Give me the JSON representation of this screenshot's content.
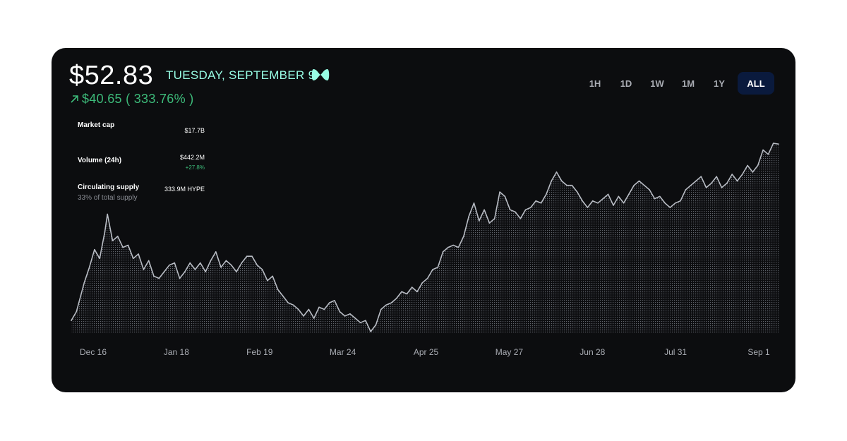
{
  "header": {
    "price": "$52.83",
    "date": "TUESDAY, SEPTEMBER 9",
    "change": "$40.65 ( 333.76% )"
  },
  "ranges": [
    "1H",
    "1D",
    "1W",
    "1M",
    "1Y",
    "ALL"
  ],
  "active_range": "ALL",
  "stats": {
    "market_cap": {
      "label": "Market cap",
      "value": "$17.7B"
    },
    "volume": {
      "label": "Volume (24h)",
      "value": "$442.2M",
      "delta": "+27.8%"
    },
    "supply": {
      "label": "Circulating supply",
      "sub": "33% of total supply",
      "value": "333.9M HYPE"
    }
  },
  "colors": {
    "accent": "#97fce4",
    "positive": "#3dbb7a",
    "line": "#b8bcc4",
    "background": "#0c0d0f"
  },
  "chart_data": {
    "type": "area",
    "x_start": "2024-12-09",
    "x_end": "2025-09-09",
    "x_ticks": [
      "Dec 16",
      "Jan 18",
      "Feb 19",
      "Mar 24",
      "Apr 25",
      "May 27",
      "Jun 28",
      "Jul 31",
      "Sep 1"
    ],
    "ylim": [
      10,
      57
    ],
    "series": [
      {
        "points": [
          [
            "2024-12-09",
            13.0
          ],
          [
            "2024-12-11",
            15.0
          ],
          [
            "2024-12-14",
            21.5
          ],
          [
            "2024-12-16",
            25.0
          ],
          [
            "2024-12-18",
            29.0
          ],
          [
            "2024-12-20",
            27.0
          ],
          [
            "2024-12-22",
            33.0
          ],
          [
            "2024-12-23",
            37.0
          ],
          [
            "2024-12-25",
            31.0
          ],
          [
            "2024-12-27",
            32.0
          ],
          [
            "2024-12-29",
            29.5
          ],
          [
            "2024-12-31",
            30.0
          ],
          [
            "2025-01-02",
            27.0
          ],
          [
            "2025-01-04",
            28.0
          ],
          [
            "2025-01-06",
            24.5
          ],
          [
            "2025-01-08",
            26.5
          ],
          [
            "2025-01-10",
            23.0
          ],
          [
            "2025-01-12",
            22.5
          ],
          [
            "2025-01-14",
            24.0
          ],
          [
            "2025-01-16",
            25.5
          ],
          [
            "2025-01-18",
            26.0
          ],
          [
            "2025-01-20",
            22.5
          ],
          [
            "2025-01-22",
            24.0
          ],
          [
            "2025-01-24",
            26.0
          ],
          [
            "2025-01-26",
            24.5
          ],
          [
            "2025-01-28",
            26.0
          ],
          [
            "2025-01-30",
            24.0
          ],
          [
            "2025-02-01",
            26.5
          ],
          [
            "2025-02-03",
            28.5
          ],
          [
            "2025-02-05",
            25.0
          ],
          [
            "2025-02-07",
            26.5
          ],
          [
            "2025-02-09",
            25.5
          ],
          [
            "2025-02-11",
            24.0
          ],
          [
            "2025-02-13",
            26.0
          ],
          [
            "2025-02-15",
            27.5
          ],
          [
            "2025-02-17",
            27.5
          ],
          [
            "2025-02-19",
            25.5
          ],
          [
            "2025-02-21",
            24.5
          ],
          [
            "2025-02-23",
            22.0
          ],
          [
            "2025-02-25",
            23.0
          ],
          [
            "2025-02-27",
            20.0
          ],
          [
            "2025-03-01",
            18.5
          ],
          [
            "2025-03-03",
            17.0
          ],
          [
            "2025-03-05",
            16.5
          ],
          [
            "2025-03-07",
            15.5
          ],
          [
            "2025-03-09",
            14.0
          ],
          [
            "2025-03-11",
            15.5
          ],
          [
            "2025-03-13",
            13.5
          ],
          [
            "2025-03-15",
            16.0
          ],
          [
            "2025-03-17",
            15.5
          ],
          [
            "2025-03-19",
            17.0
          ],
          [
            "2025-03-21",
            17.5
          ],
          [
            "2025-03-23",
            15.0
          ],
          [
            "2025-03-25",
            14.0
          ],
          [
            "2025-03-27",
            14.5
          ],
          [
            "2025-03-29",
            13.5
          ],
          [
            "2025-03-31",
            12.5
          ],
          [
            "2025-04-02",
            13.0
          ],
          [
            "2025-04-04",
            10.5
          ],
          [
            "2025-04-06",
            12.0
          ],
          [
            "2025-04-08",
            15.5
          ],
          [
            "2025-04-10",
            16.5
          ],
          [
            "2025-04-12",
            17.0
          ],
          [
            "2025-04-14",
            18.0
          ],
          [
            "2025-04-16",
            19.5
          ],
          [
            "2025-04-18",
            19.0
          ],
          [
            "2025-04-20",
            20.5
          ],
          [
            "2025-04-22",
            19.5
          ],
          [
            "2025-04-24",
            21.5
          ],
          [
            "2025-04-26",
            22.5
          ],
          [
            "2025-04-28",
            24.5
          ],
          [
            "2025-04-30",
            25.0
          ],
          [
            "2025-05-02",
            28.5
          ],
          [
            "2025-05-04",
            29.5
          ],
          [
            "2025-05-06",
            30.0
          ],
          [
            "2025-05-08",
            29.5
          ],
          [
            "2025-05-10",
            32.0
          ],
          [
            "2025-05-12",
            36.5
          ],
          [
            "2025-05-14",
            39.5
          ],
          [
            "2025-05-16",
            35.5
          ],
          [
            "2025-05-18",
            38.0
          ],
          [
            "2025-05-20",
            35.0
          ],
          [
            "2025-05-22",
            36.0
          ],
          [
            "2025-05-24",
            42.0
          ],
          [
            "2025-05-26",
            41.0
          ],
          [
            "2025-05-28",
            38.0
          ],
          [
            "2025-05-30",
            37.5
          ],
          [
            "2025-06-01",
            36.0
          ],
          [
            "2025-06-03",
            38.0
          ],
          [
            "2025-06-05",
            38.5
          ],
          [
            "2025-06-07",
            40.0
          ],
          [
            "2025-06-09",
            39.5
          ],
          [
            "2025-06-11",
            41.5
          ],
          [
            "2025-06-13",
            44.5
          ],
          [
            "2025-06-15",
            46.5
          ],
          [
            "2025-06-17",
            44.5
          ],
          [
            "2025-06-19",
            43.5
          ],
          [
            "2025-06-21",
            43.5
          ],
          [
            "2025-06-23",
            42.0
          ],
          [
            "2025-06-25",
            40.0
          ],
          [
            "2025-06-27",
            38.5
          ],
          [
            "2025-06-29",
            40.0
          ],
          [
            "2025-07-01",
            39.5
          ],
          [
            "2025-07-03",
            40.5
          ],
          [
            "2025-07-05",
            41.5
          ],
          [
            "2025-07-07",
            39.0
          ],
          [
            "2025-07-09",
            41.0
          ],
          [
            "2025-07-11",
            39.5
          ],
          [
            "2025-07-13",
            41.5
          ],
          [
            "2025-07-15",
            43.5
          ],
          [
            "2025-07-17",
            44.5
          ],
          [
            "2025-07-19",
            43.5
          ],
          [
            "2025-07-21",
            42.5
          ],
          [
            "2025-07-23",
            40.5
          ],
          [
            "2025-07-25",
            41.0
          ],
          [
            "2025-07-27",
            39.5
          ],
          [
            "2025-07-29",
            38.5
          ],
          [
            "2025-07-31",
            39.5
          ],
          [
            "2025-08-02",
            40.0
          ],
          [
            "2025-08-04",
            42.5
          ],
          [
            "2025-08-06",
            43.5
          ],
          [
            "2025-08-08",
            44.5
          ],
          [
            "2025-08-10",
            45.5
          ],
          [
            "2025-08-12",
            43.0
          ],
          [
            "2025-08-14",
            44.0
          ],
          [
            "2025-08-16",
            45.5
          ],
          [
            "2025-08-18",
            43.0
          ],
          [
            "2025-08-20",
            44.0
          ],
          [
            "2025-08-22",
            46.0
          ],
          [
            "2025-08-24",
            44.5
          ],
          [
            "2025-08-26",
            46.0
          ],
          [
            "2025-08-28",
            48.0
          ],
          [
            "2025-08-30",
            46.5
          ],
          [
            "2025-09-01",
            48.0
          ],
          [
            "2025-09-03",
            51.5
          ],
          [
            "2025-09-05",
            50.5
          ],
          [
            "2025-09-07",
            53.0
          ],
          [
            "2025-09-09",
            52.83
          ]
        ]
      }
    ]
  }
}
